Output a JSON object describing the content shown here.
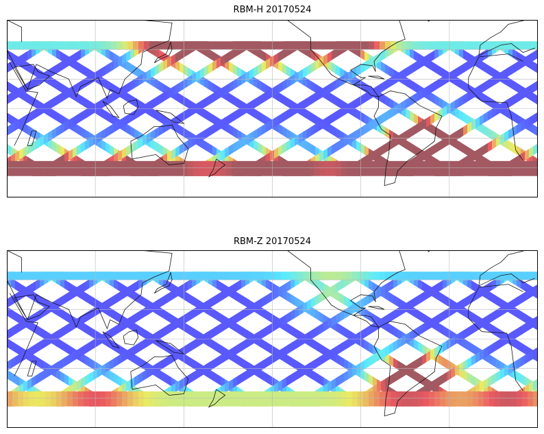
{
  "panels": [
    {
      "title": "RBM-H 20170524",
      "hotspots": [
        {
          "lon": -64,
          "lat": -35,
          "value": 0.95
        },
        {
          "lon": -50,
          "lat": -30,
          "value": 0.9
        },
        {
          "lon": -35,
          "lat": -25,
          "value": 0.8
        },
        {
          "lon": -45,
          "lat": -15,
          "value": 0.6
        },
        {
          "lon": -100,
          "lat": 42,
          "value": 0.85
        },
        {
          "lon": -140,
          "lat": 40,
          "value": 0.8
        },
        {
          "lon": 140,
          "lat": 38,
          "value": 0.7
        },
        {
          "lon": 170,
          "lat": 42,
          "value": 0.6
        },
        {
          "lon": -175,
          "lat": 40,
          "value": 0.55
        },
        {
          "lon": 0,
          "lat": -35,
          "value": 0.85
        },
        {
          "lon": 60,
          "lat": -35,
          "value": 0.6
        },
        {
          "lon": 120,
          "lat": -35,
          "value": 0.55
        },
        {
          "lon": -150,
          "lat": -33,
          "value": 0.5
        }
      ],
      "south_band": 0.75,
      "north_band": 0.35
    },
    {
      "title": "RBM-Z 20170524",
      "hotspots": [
        {
          "lon": -55,
          "lat": -20,
          "value": 0.6
        },
        {
          "lon": -40,
          "lat": -25,
          "value": 0.55
        },
        {
          "lon": -65,
          "lat": -30,
          "value": 0.5
        },
        {
          "lon": -110,
          "lat": 30,
          "value": 0.4
        },
        {
          "lon": 10,
          "lat": -35,
          "value": 0.45
        },
        {
          "lon": 90,
          "lat": -35,
          "value": 0.4
        }
      ],
      "south_band": 0.45,
      "north_band": 0.25
    }
  ],
  "colormap": "jet",
  "projection": "equirectangular",
  "grid": true,
  "lon_range": [
    30,
    390
  ],
  "lat_range": [
    -60,
    60
  ],
  "data_lat_range": [
    -40,
    40
  ]
}
